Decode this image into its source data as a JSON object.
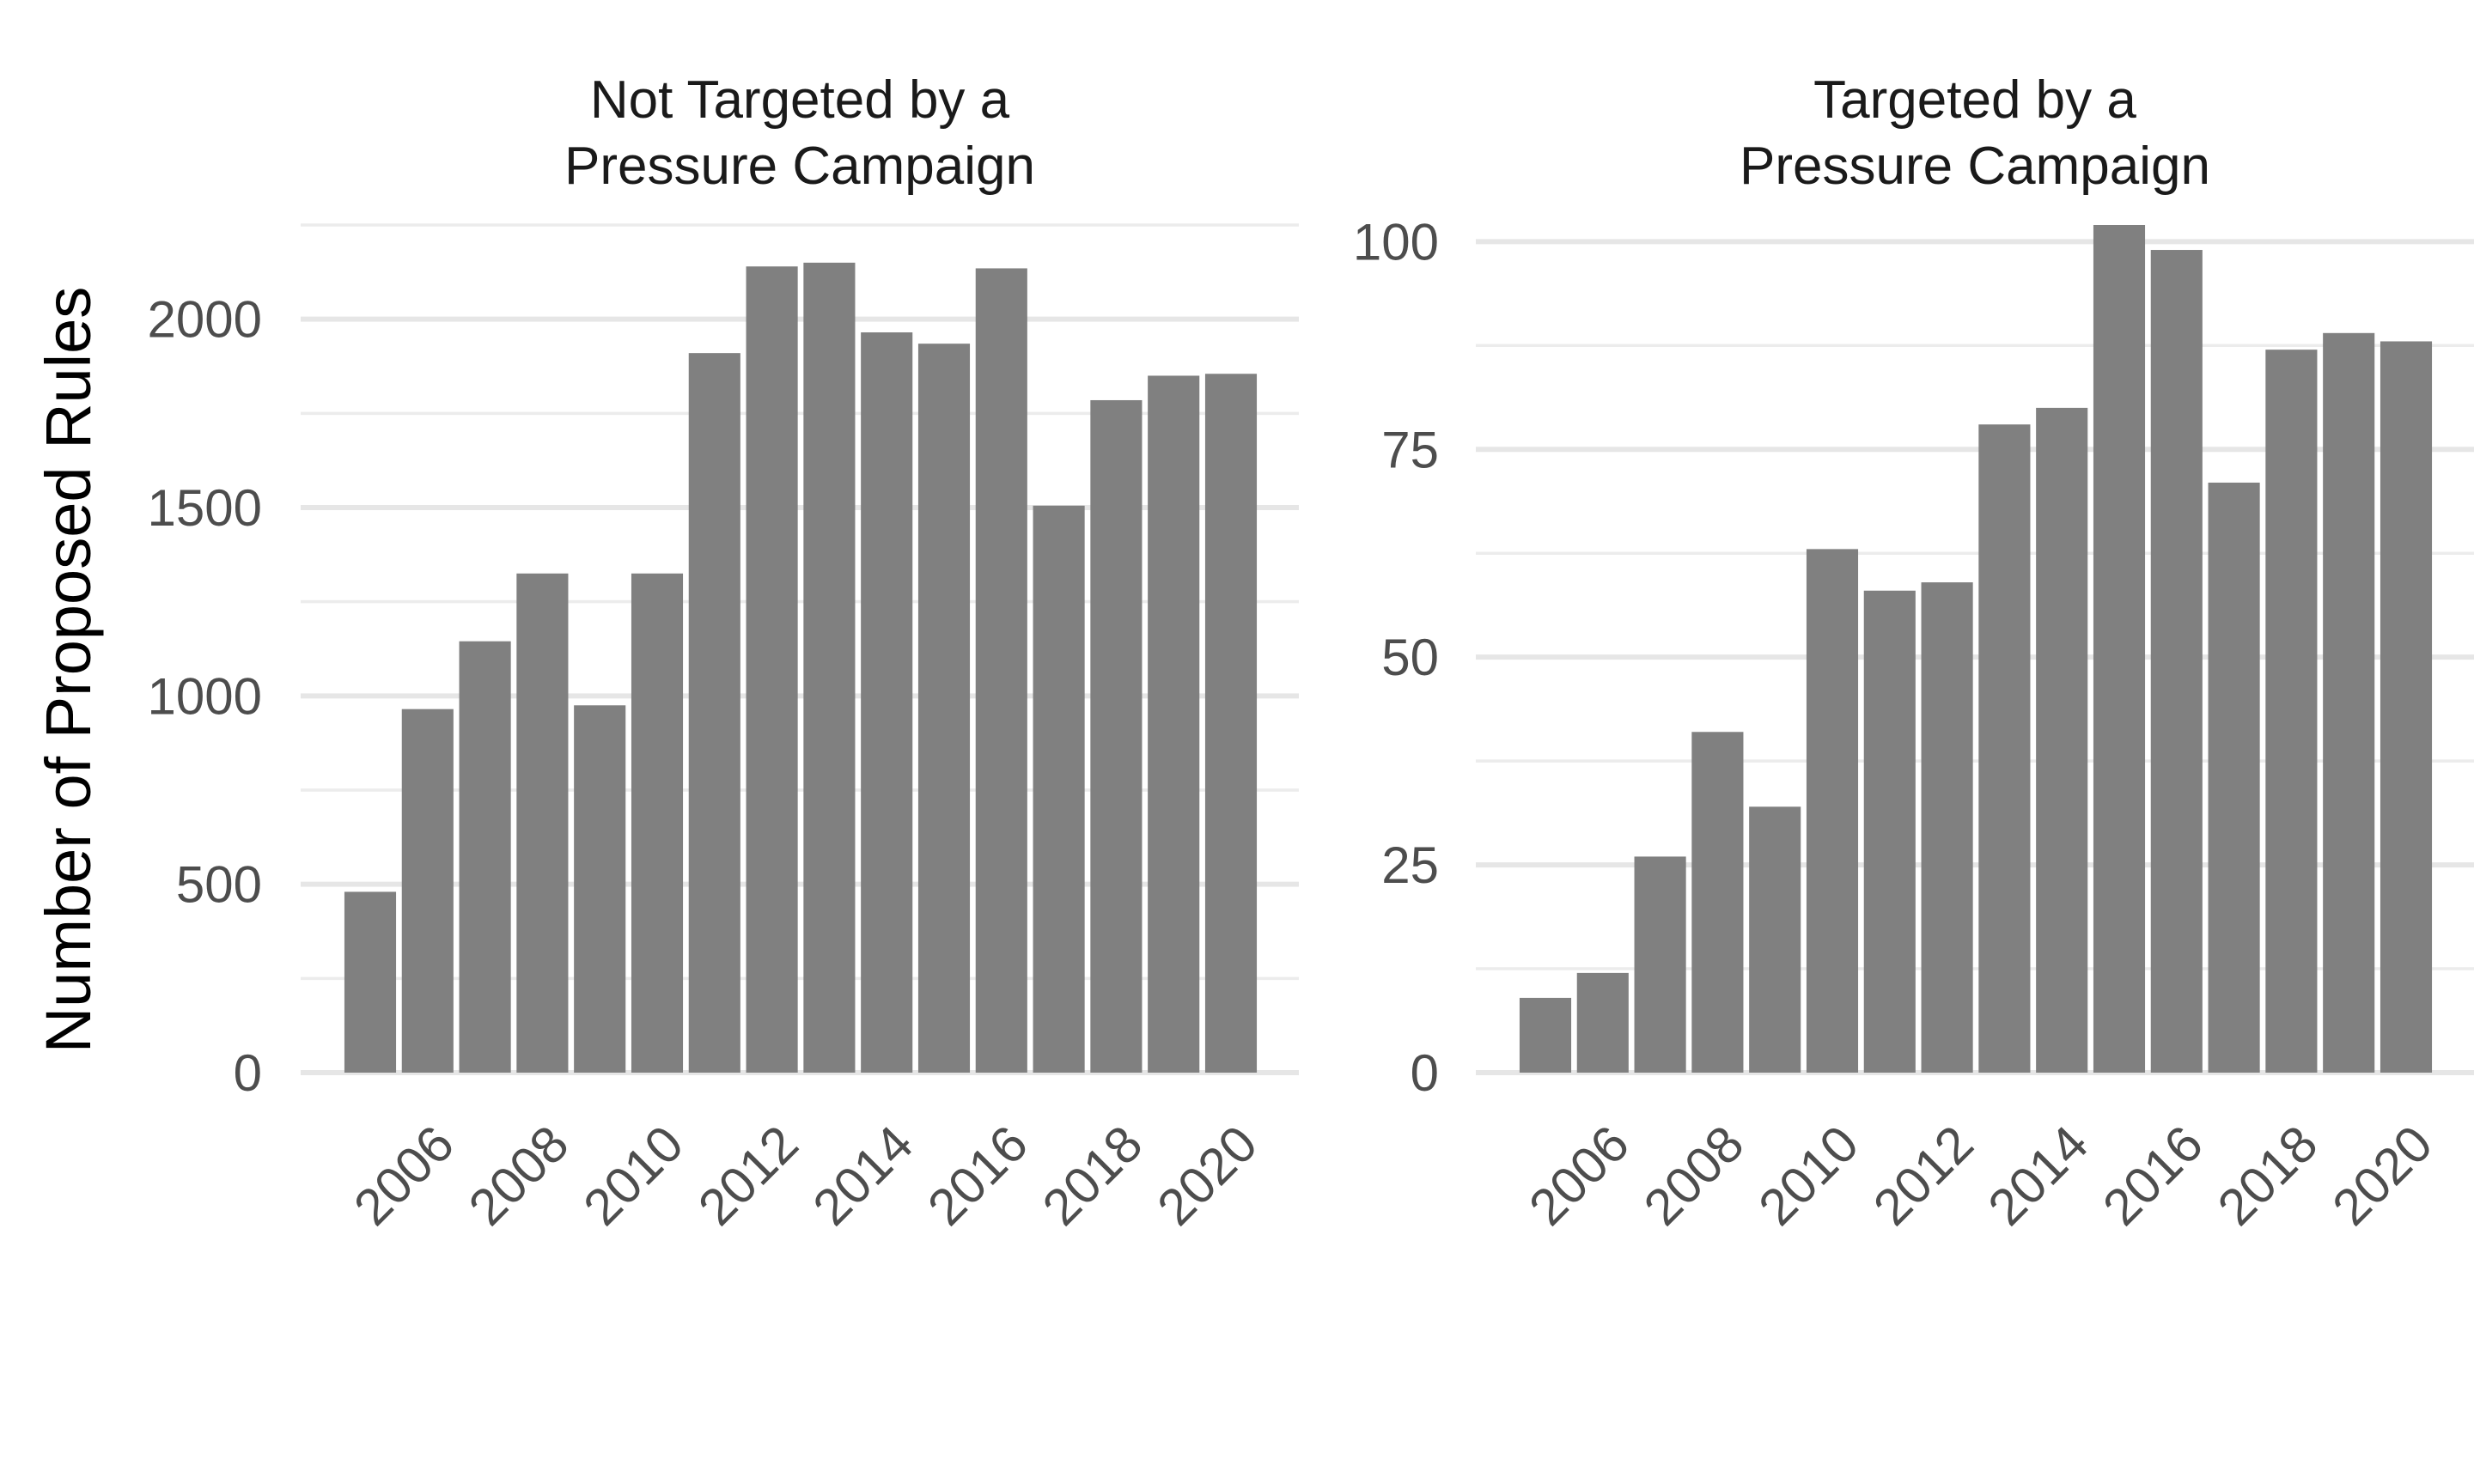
{
  "ylabel": "Number of Proposed Rules",
  "colors": {
    "bar": "#808080",
    "grid": "#e6e6e6",
    "tick_text": "#4d4d4d",
    "background": "#ffffff"
  },
  "chart_data": [
    {
      "type": "bar",
      "title": "Not Targeted by a Pressure Campaign",
      "title_lines": [
        "Not Targeted by a",
        "Pressure Campaign"
      ],
      "categories": [
        2005,
        2006,
        2007,
        2008,
        2009,
        2010,
        2011,
        2012,
        2013,
        2014,
        2015,
        2016,
        2017,
        2018,
        2019,
        2020
      ],
      "values": [
        480,
        965,
        1145,
        1325,
        975,
        1325,
        1910,
        2140,
        2150,
        1965,
        1935,
        2135,
        1505,
        1785,
        1850,
        1855
      ],
      "xticks": [
        2006,
        2008,
        2010,
        2012,
        2014,
        2016,
        2018,
        2020
      ],
      "yticks": [
        0,
        500,
        1000,
        1500,
        2000
      ],
      "ylim": [
        0,
        2250
      ],
      "xlabel": "",
      "ylabel": "Number of Proposed Rules",
      "grid": true
    },
    {
      "type": "bar",
      "title": "Targeted by a Pressure Campaign",
      "title_lines": [
        "Targeted by a",
        "Pressure Campaign"
      ],
      "categories": [
        2005,
        2006,
        2007,
        2008,
        2009,
        2010,
        2011,
        2012,
        2013,
        2014,
        2015,
        2016,
        2017,
        2018,
        2019,
        2020
      ],
      "values": [
        9,
        12,
        26,
        41,
        32,
        63,
        58,
        59,
        78,
        80,
        102,
        99,
        71,
        87,
        89,
        88
      ],
      "xticks": [
        2006,
        2008,
        2010,
        2012,
        2014,
        2016,
        2018,
        2020
      ],
      "yticks": [
        0,
        25,
        50,
        75,
        100
      ],
      "ylim": [
        0,
        102
      ],
      "xlabel": "",
      "ylabel": "",
      "grid": true
    }
  ]
}
